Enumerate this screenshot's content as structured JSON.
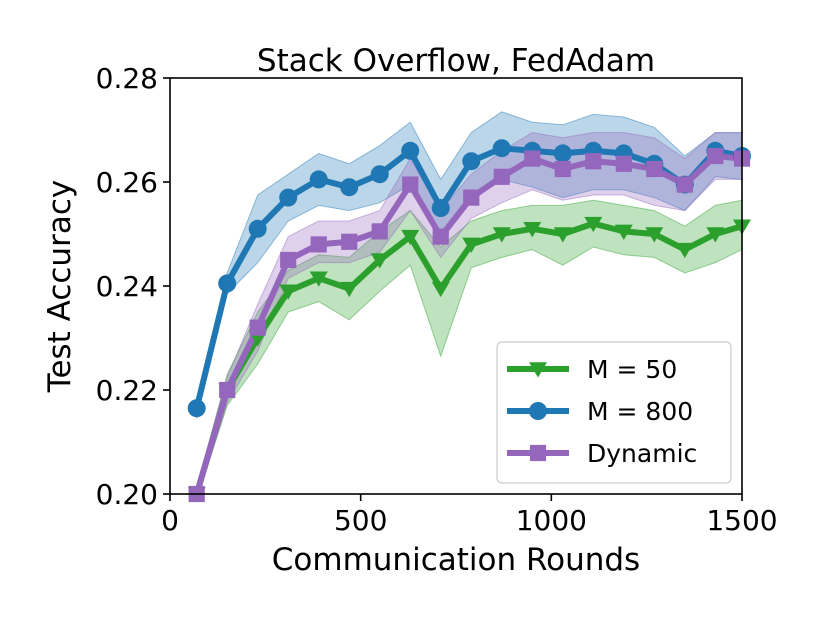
{
  "chart_data": {
    "type": "line",
    "title": "Stack Overflow, FedAdam",
    "xlabel": "Communication Rounds",
    "ylabel": "Test Accuracy",
    "xlim": [
      0,
      1500
    ],
    "ylim": [
      0.2,
      0.28
    ],
    "xticks": [
      "0",
      "500",
      "1000",
      "1500"
    ],
    "yticks": [
      "0.20",
      "0.22",
      "0.24",
      "0.26",
      "0.28"
    ],
    "grid": false,
    "legend_position": "bottom-right",
    "x": [
      70,
      150,
      230,
      310,
      390,
      470,
      550,
      630,
      710,
      790,
      870,
      950,
      1030,
      1110,
      1190,
      1270,
      1350,
      1430,
      1500
    ],
    "series": [
      {
        "name": "M = 50",
        "color": "#2ca02c",
        "marker": "triangle-down",
        "values": [
          0.2,
          0.22,
          0.23,
          0.239,
          0.2415,
          0.2395,
          0.245,
          0.2495,
          0.2395,
          0.248,
          0.25,
          0.251,
          0.25,
          0.252,
          0.2505,
          0.25,
          0.247,
          0.25,
          0.2515
        ],
        "lower": [
          0.199,
          0.217,
          0.225,
          0.235,
          0.237,
          0.2335,
          0.239,
          0.244,
          0.2265,
          0.2435,
          0.2455,
          0.247,
          0.244,
          0.2475,
          0.246,
          0.2455,
          0.2425,
          0.2445,
          0.247
        ],
        "upper": [
          0.201,
          0.223,
          0.235,
          0.243,
          0.246,
          0.2455,
          0.2505,
          0.2545,
          0.2475,
          0.2525,
          0.2545,
          0.2555,
          0.2555,
          0.2565,
          0.2555,
          0.2545,
          0.2515,
          0.2555,
          0.2565
        ]
      },
      {
        "name": "M = 800",
        "color": "#1f77b4",
        "marker": "circle",
        "values": [
          0.2165,
          0.2405,
          0.251,
          0.257,
          0.2605,
          0.259,
          0.2615,
          0.266,
          0.255,
          0.264,
          0.2665,
          0.266,
          0.2655,
          0.266,
          0.2655,
          0.2635,
          0.2595,
          0.266,
          0.265
        ],
        "lower": [
          0.2145,
          0.2385,
          0.2445,
          0.2525,
          0.2555,
          0.2545,
          0.256,
          0.2595,
          0.2495,
          0.2575,
          0.2605,
          0.259,
          0.257,
          0.2585,
          0.2585,
          0.257,
          0.2545,
          0.261,
          0.2605
        ],
        "upper": [
          0.2185,
          0.2425,
          0.2575,
          0.2615,
          0.2655,
          0.2635,
          0.267,
          0.2715,
          0.2605,
          0.2695,
          0.2735,
          0.2715,
          0.271,
          0.273,
          0.2725,
          0.2705,
          0.265,
          0.2695,
          0.2695
        ]
      },
      {
        "name": "Dynamic",
        "color": "#9467bd",
        "marker": "square",
        "values": [
          0.2,
          0.22,
          0.232,
          0.245,
          0.248,
          0.2485,
          0.2505,
          0.2595,
          0.2495,
          0.257,
          0.261,
          0.2645,
          0.2625,
          0.264,
          0.2635,
          0.2625,
          0.2595,
          0.265,
          0.2645
        ],
        "lower": [
          0.1985,
          0.2175,
          0.2275,
          0.2415,
          0.2445,
          0.2445,
          0.2465,
          0.2545,
          0.2455,
          0.253,
          0.256,
          0.2585,
          0.2565,
          0.2575,
          0.2575,
          0.2555,
          0.2545,
          0.2605,
          0.2605
        ],
        "upper": [
          0.2015,
          0.2225,
          0.2365,
          0.2495,
          0.2525,
          0.2525,
          0.2545,
          0.2645,
          0.2545,
          0.2615,
          0.266,
          0.2695,
          0.2685,
          0.2695,
          0.2695,
          0.2685,
          0.2645,
          0.2695,
          0.2695
        ]
      }
    ]
  }
}
